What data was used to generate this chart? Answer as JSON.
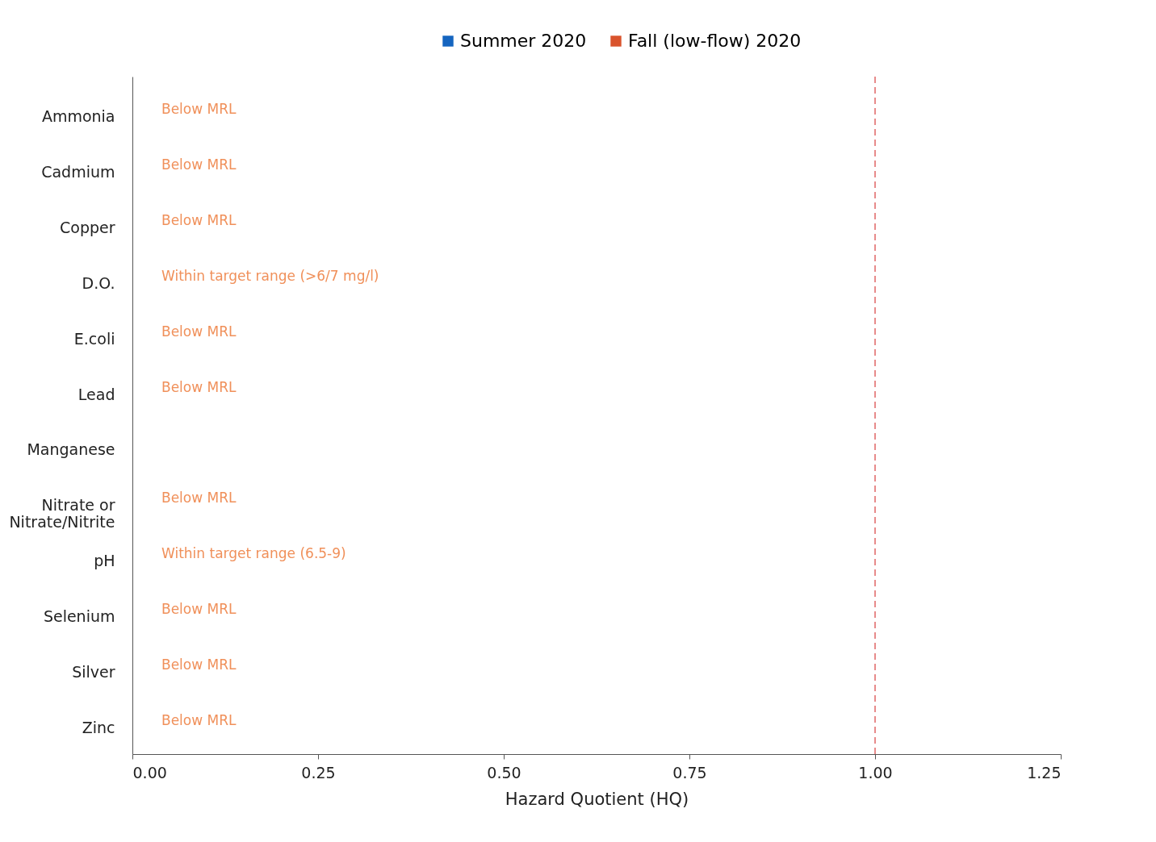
{
  "chart_data": {
    "type": "bar",
    "orientation": "horizontal",
    "categories": [
      "Ammonia",
      "Cadmium",
      "Copper",
      "D.O.",
      "E.coli",
      "Lead",
      "Manganese",
      "Nitrate or\nNitrate/Nitrite",
      "pH",
      "Selenium",
      "Silver",
      "Zinc"
    ],
    "series": [
      {
        "name": "Summer 2020",
        "color": "#1565c0",
        "values": [
          null,
          null,
          null,
          null,
          null,
          null,
          null,
          null,
          null,
          null,
          null,
          null
        ]
      },
      {
        "name": "Fall (low-flow) 2020",
        "color": "#d9532c",
        "values": [
          null,
          null,
          null,
          null,
          null,
          null,
          null,
          null,
          null,
          null,
          null,
          null
        ],
        "value_labels": [
          "Below MRL",
          "Below MRL",
          "Below MRL",
          "Within target range (>6/7 mg/l)",
          "Below MRL",
          "Below MRL",
          null,
          "Below MRL",
          "Within target range (6.5-9)",
          "Below MRL",
          "Below MRL",
          "Below MRL"
        ]
      }
    ],
    "xlabel": "Hazard Quotient (HQ)",
    "xlim": [
      0,
      1.25
    ],
    "xticks": [
      {
        "value": 0,
        "label": "0.00"
      },
      {
        "value": 0.25,
        "label": "0.25"
      },
      {
        "value": 0.5,
        "label": "0.50"
      },
      {
        "value": 0.75,
        "label": "0.75"
      },
      {
        "value": 1,
        "label": "1.00"
      },
      {
        "value": 1.25,
        "label": "1.25"
      }
    ],
    "ref_lines": [
      {
        "axis": "x",
        "value": 1,
        "color": "#e06666",
        "line_style": "dashed"
      }
    ],
    "legend": "top",
    "grid": false
  }
}
